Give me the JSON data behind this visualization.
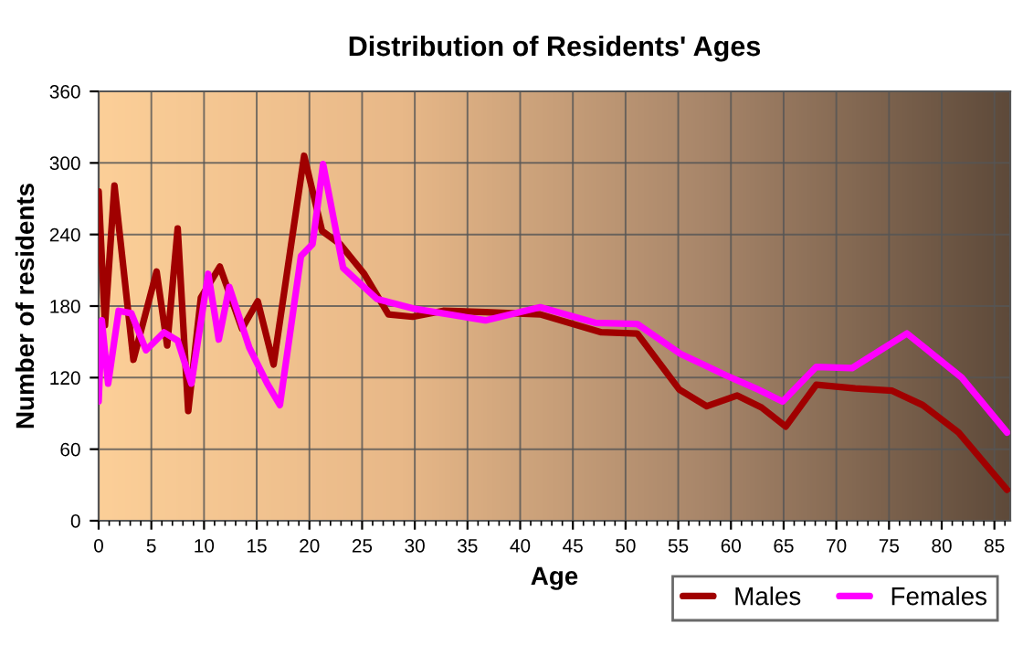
{
  "chart_data": {
    "type": "line",
    "title": "Distribution of Residents' Ages",
    "xlabel": "Age",
    "ylabel": "Number of residents",
    "xlim": [
      0,
      86.5
    ],
    "xticks": [
      0,
      5,
      10,
      15,
      20,
      25,
      30,
      35,
      40,
      45,
      50,
      55,
      60,
      65,
      70,
      75,
      80,
      85
    ],
    "ylim": [
      0,
      360
    ],
    "yticks": [
      0,
      60,
      120,
      180,
      240,
      300,
      360
    ],
    "grid": true,
    "legend": "bottom right",
    "series": [
      {
        "name": "Males",
        "color": "#a00000",
        "x": [
          0,
          0.6,
          1.5,
          3.3,
          5.5,
          6.5,
          7.5,
          8.5,
          9.7,
          11.5,
          13.6,
          15.1,
          16.6,
          19.5,
          21.2,
          22.9,
          25.2,
          27.5,
          29.8,
          32.7,
          36.7,
          41.9,
          47.7,
          51.1,
          55.1,
          57.7,
          60.6,
          62.9,
          65.2,
          68.1,
          71.8,
          75.3,
          78.2,
          81.6,
          86.2
        ],
        "values": [
          276,
          164,
          281,
          135,
          209,
          147,
          245,
          92,
          187,
          213,
          161,
          184,
          131,
          306,
          243,
          232,
          207,
          173,
          171,
          176,
          175,
          173,
          158,
          157,
          110,
          96,
          105,
          95,
          79,
          114,
          111,
          109,
          97,
          74,
          26
        ]
      },
      {
        "name": "Females",
        "color": "#ff00ff",
        "x": [
          0,
          0.3,
          0.9,
          1.9,
          3.1,
          4.5,
          6.2,
          7.5,
          8.8,
          10.4,
          11.4,
          12.4,
          14.3,
          16,
          17.2,
          19.2,
          20.3,
          21.3,
          23.2,
          26.4,
          29.8,
          36.7,
          41.9,
          47.1,
          51.1,
          55.2,
          59.5,
          62.6,
          64.9,
          68.1,
          71.5,
          76.7,
          81.9,
          86.2
        ],
        "values": [
          100,
          168,
          115,
          176,
          174,
          143,
          158,
          151,
          115,
          207,
          152,
          196,
          145,
          115,
          97,
          222,
          232,
          299,
          212,
          186,
          178,
          168,
          179,
          166,
          165,
          140,
          122,
          110,
          100,
          129,
          128,
          157,
          120,
          74
        ]
      }
    ]
  }
}
